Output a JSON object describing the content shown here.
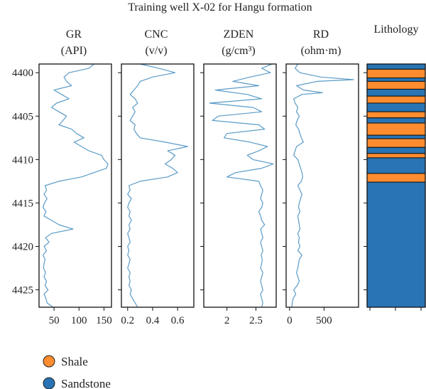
{
  "chart_data": {
    "type": "line",
    "title": "Training well X-02 for Hangu formation",
    "depth_axis": {
      "range": [
        4399.0,
        4427.0
      ],
      "ticks": [
        4400,
        4405,
        4410,
        4415,
        4420,
        4425
      ],
      "inverted": true
    },
    "tracks": [
      {
        "id": "gr",
        "label_line1": "GR",
        "label_line2": "(API)",
        "xlim": [
          20,
          165
        ],
        "ticks": [
          50,
          100,
          150
        ],
        "color": "#5b9bc8",
        "depth": [
          4399.0,
          4399.5,
          4400.0,
          4400.5,
          4401.0,
          4401.5,
          4402.0,
          4402.5,
          4403.0,
          4403.5,
          4404.0,
          4404.5,
          4405.0,
          4405.5,
          4406.0,
          4406.5,
          4407.0,
          4407.5,
          4408.0,
          4408.5,
          4409.0,
          4409.5,
          4410.0,
          4410.5,
          4411.0,
          4411.5,
          4412.0,
          4412.5,
          4413.0,
          4413.5,
          4414.0,
          4414.5,
          4415.0,
          4415.5,
          4416.0,
          4416.5,
          4417.0,
          4417.5,
          4418.0,
          4418.5,
          4419.0,
          4419.5,
          4420.0,
          4420.5,
          4421.0,
          4421.5,
          4422.0,
          4422.5,
          4423.0,
          4423.5,
          4424.0,
          4424.5,
          4425.0,
          4425.5,
          4426.0,
          4426.5,
          4427.0
        ],
        "values": [
          130,
          120,
          80,
          70,
          75,
          85,
          50,
          65,
          80,
          55,
          45,
          60,
          75,
          68,
          60,
          85,
          95,
          110,
          90,
          105,
          120,
          145,
          150,
          158,
          155,
          130,
          105,
          60,
          32,
          35,
          30,
          36,
          31,
          28,
          34,
          30,
          45,
          60,
          88,
          45,
          33,
          40,
          30,
          35,
          28,
          32,
          30,
          29,
          33,
          30,
          35,
          32,
          38,
          30,
          34,
          36,
          48
        ]
      },
      {
        "id": "cnc",
        "label_line1": "CNC",
        "label_line2": "(v/v)",
        "xlim": [
          0.15,
          0.73
        ],
        "ticks": [
          0.2,
          0.4,
          0.6
        ],
        "color": "#5b9bc8",
        "depth": [
          4399.0,
          4399.5,
          4400.0,
          4400.5,
          4401.0,
          4401.5,
          4402.0,
          4402.5,
          4403.0,
          4403.5,
          4404.0,
          4404.5,
          4405.0,
          4405.5,
          4406.0,
          4406.5,
          4407.0,
          4407.5,
          4408.0,
          4408.5,
          4409.0,
          4409.5,
          4410.0,
          4410.5,
          4411.0,
          4411.5,
          4412.0,
          4412.5,
          4413.0,
          4413.5,
          4414.0,
          4414.5,
          4415.0,
          4415.5,
          4416.0,
          4416.5,
          4417.0,
          4417.5,
          4418.0,
          4418.5,
          4419.0,
          4419.5,
          4420.0,
          4420.5,
          4421.0,
          4421.5,
          4422.0,
          4422.5,
          4423.0,
          4423.5,
          4424.0,
          4424.5,
          4425.0,
          4425.5,
          4426.0,
          4426.5,
          4427.0
        ],
        "values": [
          0.3,
          0.45,
          0.58,
          0.4,
          0.3,
          0.28,
          0.25,
          0.22,
          0.26,
          0.28,
          0.24,
          0.26,
          0.24,
          0.22,
          0.26,
          0.25,
          0.27,
          0.3,
          0.5,
          0.68,
          0.52,
          0.58,
          0.55,
          0.5,
          0.56,
          0.6,
          0.52,
          0.3,
          0.21,
          0.22,
          0.2,
          0.23,
          0.21,
          0.2,
          0.22,
          0.21,
          0.23,
          0.21,
          0.22,
          0.2,
          0.21,
          0.22,
          0.2,
          0.21,
          0.2,
          0.22,
          0.21,
          0.2,
          0.22,
          0.21,
          0.22,
          0.21,
          0.23,
          0.22,
          0.24,
          0.26,
          0.28
        ]
      },
      {
        "id": "zden",
        "label_line1": "ZDEN",
        "label_line2": "(g/cm³)",
        "xlim": [
          1.6,
          2.85
        ],
        "ticks": [
          2.0,
          2.5
        ],
        "color": "#5b9bc8",
        "depth": [
          4399.0,
          4399.5,
          4400.0,
          4400.5,
          4401.0,
          4401.5,
          4402.0,
          4402.5,
          4403.0,
          4403.5,
          4404.0,
          4404.5,
          4405.0,
          4405.5,
          4406.0,
          4406.5,
          4407.0,
          4407.5,
          4408.0,
          4408.5,
          4409.0,
          4409.5,
          4410.0,
          4410.5,
          4411.0,
          4411.5,
          4412.0,
          4412.5,
          4413.0,
          4413.5,
          4414.0,
          4414.5,
          4415.0,
          4415.5,
          4416.0,
          4416.5,
          4417.0,
          4417.5,
          4418.0,
          4418.5,
          4419.0,
          4419.5,
          4420.0,
          4420.5,
          4421.0,
          4421.5,
          4422.0,
          4422.5,
          4423.0,
          4423.5,
          4424.0,
          4424.5,
          4425.0,
          4425.5,
          4426.0,
          4426.5,
          4427.0
        ],
        "values": [
          2.78,
          2.6,
          2.75,
          2.4,
          2.1,
          2.55,
          1.8,
          2.35,
          2.6,
          1.7,
          2.45,
          2.6,
          1.85,
          1.75,
          2.55,
          2.65,
          2.0,
          1.95,
          2.4,
          2.7,
          2.55,
          2.35,
          2.45,
          2.8,
          2.6,
          2.15,
          2.0,
          2.55,
          2.58,
          2.62,
          2.6,
          2.58,
          2.62,
          2.6,
          2.55,
          2.58,
          2.6,
          2.65,
          2.58,
          2.6,
          2.62,
          2.58,
          2.6,
          2.62,
          2.59,
          2.61,
          2.6,
          2.58,
          2.62,
          2.6,
          2.58,
          2.6,
          2.62,
          2.58,
          2.6,
          2.62,
          2.6
        ]
      },
      {
        "id": "rd",
        "label_line1": "RD",
        "label_line2": "(ohm·m)",
        "xlim": [
          -50,
          1000
        ],
        "ticks": [
          0,
          500
        ],
        "color": "#5b9bc8",
        "depth": [
          4399.0,
          4399.5,
          4400.0,
          4400.5,
          4400.8,
          4401.0,
          4401.5,
          4402.0,
          4402.3,
          4402.5,
          4403.0,
          4403.5,
          4404.0,
          4404.5,
          4405.0,
          4405.5,
          4406.0,
          4406.5,
          4407.0,
          4407.5,
          4408.0,
          4408.5,
          4409.0,
          4409.5,
          4410.0,
          4410.5,
          4411.0,
          4411.5,
          4412.0,
          4412.5,
          4413.0,
          4413.5,
          4414.0,
          4414.5,
          4415.0,
          4415.5,
          4416.0,
          4416.5,
          4417.0,
          4417.5,
          4418.0,
          4418.5,
          4419.0,
          4419.5,
          4420.0,
          4420.5,
          4421.0,
          4421.5,
          4422.0,
          4422.5,
          4423.0,
          4423.5,
          4424.0,
          4424.5,
          4425.0,
          4425.5,
          4426.0,
          4426.5,
          4427.0
        ],
        "values": [
          120,
          80,
          150,
          450,
          930,
          400,
          100,
          200,
          480,
          180,
          60,
          80,
          120,
          100,
          140,
          110,
          90,
          130,
          150,
          170,
          200,
          100,
          80,
          60,
          120,
          140,
          160,
          180,
          190,
          170,
          120,
          150,
          180,
          160,
          140,
          130,
          150,
          120,
          130,
          140,
          150,
          120,
          140,
          130,
          150,
          120,
          180,
          140,
          130,
          120,
          100,
          120,
          140,
          110,
          60,
          90,
          50,
          40,
          30
        ]
      }
    ],
    "lithology_track": {
      "label": "Lithology",
      "colors": {
        "Shale": "#ff8c2e",
        "Sandstone": "#2874b4"
      },
      "intervals": [
        {
          "top": 4399.0,
          "bottom": 4399.6,
          "type": "Sandstone"
        },
        {
          "top": 4399.6,
          "bottom": 4400.6,
          "type": "Shale"
        },
        {
          "top": 4400.6,
          "bottom": 4401.0,
          "type": "Sandstone"
        },
        {
          "top": 4401.0,
          "bottom": 4401.9,
          "type": "Shale"
        },
        {
          "top": 4401.9,
          "bottom": 4402.7,
          "type": "Sandstone"
        },
        {
          "top": 4402.7,
          "bottom": 4403.5,
          "type": "Shale"
        },
        {
          "top": 4403.5,
          "bottom": 4404.5,
          "type": "Sandstone"
        },
        {
          "top": 4404.5,
          "bottom": 4405.2,
          "type": "Shale"
        },
        {
          "top": 4405.2,
          "bottom": 4405.8,
          "type": "Sandstone"
        },
        {
          "top": 4405.8,
          "bottom": 4407.2,
          "type": "Shale"
        },
        {
          "top": 4407.2,
          "bottom": 4407.6,
          "type": "Sandstone"
        },
        {
          "top": 4407.6,
          "bottom": 4408.6,
          "type": "Shale"
        },
        {
          "top": 4408.6,
          "bottom": 4409.3,
          "type": "Sandstone"
        },
        {
          "top": 4409.3,
          "bottom": 4409.8,
          "type": "Shale"
        },
        {
          "top": 4409.8,
          "bottom": 4411.6,
          "type": "Sandstone"
        },
        {
          "top": 4411.6,
          "bottom": 4412.6,
          "type": "Shale"
        },
        {
          "top": 4412.6,
          "bottom": 4427.0,
          "type": "Sandstone"
        }
      ]
    },
    "legend": {
      "placement": "bottom-left",
      "items": [
        {
          "label": "Shale",
          "color": "#ff8c2e"
        },
        {
          "label": "Sandstone",
          "color": "#2874b4"
        }
      ]
    }
  }
}
